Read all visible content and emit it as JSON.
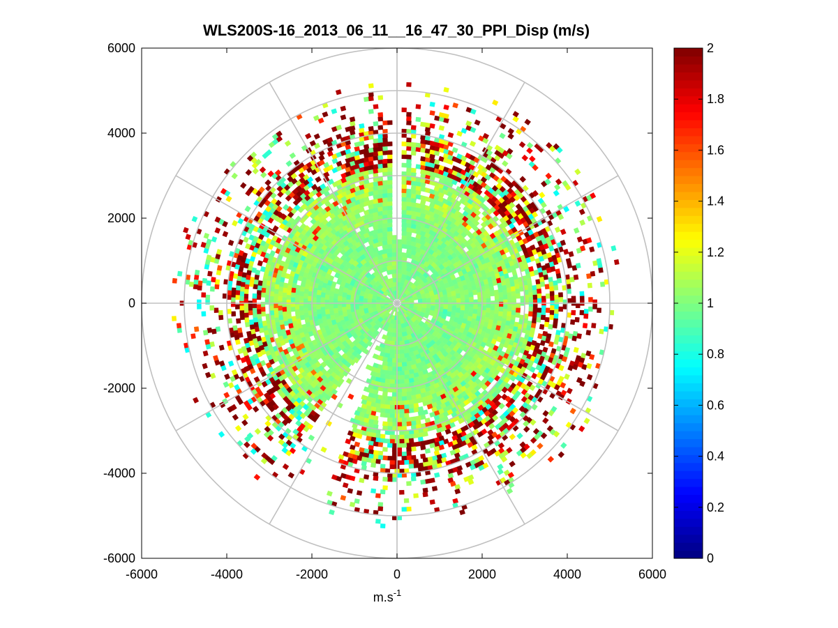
{
  "chart_data": {
    "type": "heatmap",
    "subtype": "polar-ppi",
    "title": "WLS200S-16_2013_06_11__16_47_30_PPI_Disp (m/s)",
    "xlabel": {
      "base": "m.s",
      "exponent": "-1"
    },
    "ylabel": "",
    "xlim": [
      -6000,
      6000
    ],
    "ylim": [
      -6000,
      6000
    ],
    "x_ticks": [
      -6000,
      -4000,
      -2000,
      0,
      2000,
      4000,
      6000
    ],
    "y_ticks": [
      -6000,
      -4000,
      -2000,
      0,
      2000,
      4000,
      6000
    ],
    "polar_grid": {
      "ring_radii": [
        1000,
        2000,
        3000,
        4000,
        5000,
        6000
      ],
      "spoke_angles_deg": [
        0,
        30,
        60,
        90,
        120,
        150,
        180,
        210,
        240,
        270,
        300,
        330
      ]
    },
    "colorbar": {
      "colormap": "jet",
      "min": 0,
      "max": 2,
      "ticks": [
        0,
        0.2,
        0.4,
        0.6,
        0.8,
        1,
        1.2,
        1.4,
        1.6,
        1.8,
        2
      ],
      "tick_labels": [
        "0",
        "0.2",
        "0.4",
        "0.6",
        "0.8",
        "1",
        "1.2",
        "1.4",
        "1.6",
        "1.8",
        "2"
      ]
    },
    "data_description": {
      "center_value": 1.0,
      "edge_value": 2.0,
      "dense_data_radius": 4000,
      "max_sparse_radius": 5300,
      "gap_sector_deg": [
        -2,
        2
      ],
      "gap_sector2_deg": [
        200,
        215
      ]
    }
  },
  "colors": {
    "grid": "#c0c0c0",
    "axes": "#000000",
    "background": "#ffffff"
  }
}
